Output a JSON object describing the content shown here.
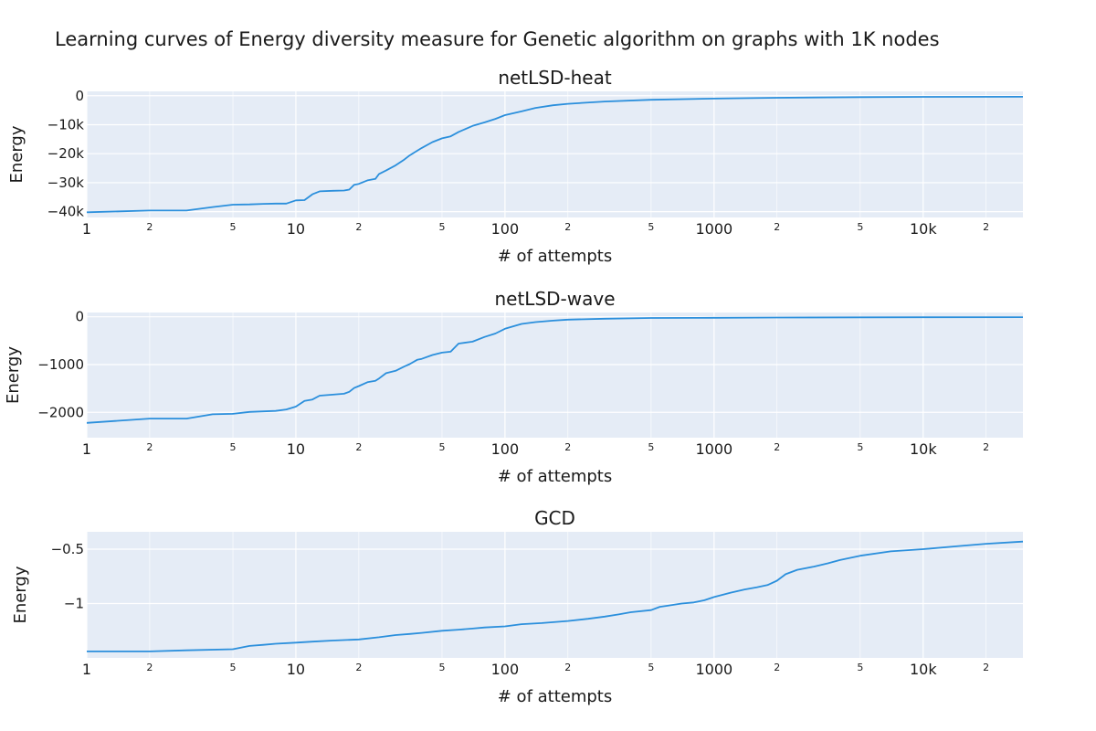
{
  "figure": {
    "title": "Learning curves of Energy diversity measure for Genetic algorithm on graphs with 1K nodes"
  },
  "colors": {
    "line": "#2b8fdc",
    "plot_bg": "#e5ecf6",
    "grid": "#ffffff"
  },
  "chart_data": [
    {
      "type": "line",
      "title": "netLSD-heat",
      "xlabel": "# of attempts",
      "ylabel": "Energy",
      "xscale": "log",
      "xlim": [
        1,
        30000
      ],
      "ylim": [
        -42000,
        1500
      ],
      "xticks_major": [
        {
          "value": 1,
          "label": "1"
        },
        {
          "value": 10,
          "label": "10"
        },
        {
          "value": 100,
          "label": "100"
        },
        {
          "value": 1000,
          "label": "1000"
        },
        {
          "value": 10000,
          "label": "10k"
        }
      ],
      "xticks_minor": [
        {
          "value": 2,
          "label": "2"
        },
        {
          "value": 5,
          "label": "5"
        },
        {
          "value": 20,
          "label": "2"
        },
        {
          "value": 50,
          "label": "5"
        },
        {
          "value": 200,
          "label": "2"
        },
        {
          "value": 500,
          "label": "5"
        },
        {
          "value": 2000,
          "label": "2"
        },
        {
          "value": 5000,
          "label": "5"
        },
        {
          "value": 20000,
          "label": "2"
        }
      ],
      "yticks": [
        {
          "value": 0,
          "label": "0"
        },
        {
          "value": -10000,
          "label": "−10k"
        },
        {
          "value": -20000,
          "label": "−20k"
        },
        {
          "value": -30000,
          "label": "−30k"
        },
        {
          "value": -40000,
          "label": "−40k"
        }
      ],
      "grid": true,
      "series": [
        {
          "x": [
            1,
            2,
            3,
            4,
            5,
            6,
            7,
            8,
            9,
            10,
            11,
            12,
            13,
            15,
            17,
            18,
            19,
            20,
            22,
            24,
            25,
            27,
            30,
            33,
            35,
            38,
            40,
            45,
            50,
            55,
            60,
            70,
            80,
            90,
            100,
            120,
            140,
            170,
            200,
            300,
            500,
            1000,
            2000,
            5000,
            10000,
            30000
          ],
          "y": [
            -40200,
            -39600,
            -39600,
            -38400,
            -37600,
            -37500,
            -37300,
            -37200,
            -37200,
            -36100,
            -36000,
            -34000,
            -33000,
            -32800,
            -32700,
            -32400,
            -30700,
            -30400,
            -29200,
            -28700,
            -27000,
            -25800,
            -24000,
            -22000,
            -20600,
            -19000,
            -18000,
            -16000,
            -14700,
            -14000,
            -12500,
            -10400,
            -9200,
            -8000,
            -6700,
            -5400,
            -4200,
            -3300,
            -2800,
            -2000,
            -1400,
            -1000,
            -700,
            -500,
            -400,
            -350
          ]
        }
      ]
    },
    {
      "type": "line",
      "title": "netLSD-wave",
      "xlabel": "# of attempts",
      "ylabel": "Energy",
      "xscale": "log",
      "xlim": [
        1,
        30000
      ],
      "ylim": [
        -2530,
        90
      ],
      "xticks_major": [
        {
          "value": 1,
          "label": "1"
        },
        {
          "value": 10,
          "label": "10"
        },
        {
          "value": 100,
          "label": "100"
        },
        {
          "value": 1000,
          "label": "1000"
        },
        {
          "value": 10000,
          "label": "10k"
        }
      ],
      "xticks_minor": [
        {
          "value": 2,
          "label": "2"
        },
        {
          "value": 5,
          "label": "5"
        },
        {
          "value": 20,
          "label": "2"
        },
        {
          "value": 50,
          "label": "5"
        },
        {
          "value": 200,
          "label": "2"
        },
        {
          "value": 500,
          "label": "5"
        },
        {
          "value": 2000,
          "label": "2"
        },
        {
          "value": 5000,
          "label": "5"
        },
        {
          "value": 20000,
          "label": "2"
        }
      ],
      "yticks": [
        {
          "value": 0,
          "label": "0"
        },
        {
          "value": -1000,
          "label": "−1000"
        },
        {
          "value": -2000,
          "label": "−2000"
        }
      ],
      "grid": true,
      "series": [
        {
          "x": [
            1,
            2,
            3,
            4,
            5,
            6,
            7,
            8,
            9,
            10,
            11,
            12,
            13,
            15,
            17,
            18,
            19,
            20,
            22,
            24,
            25,
            27,
            30,
            33,
            35,
            38,
            40,
            45,
            50,
            55,
            60,
            70,
            80,
            90,
            100,
            120,
            140,
            170,
            200,
            300,
            500,
            1000,
            2000,
            5000,
            10000,
            30000
          ],
          "y": [
            -2220,
            -2130,
            -2130,
            -2040,
            -2030,
            -1990,
            -1980,
            -1970,
            -1940,
            -1880,
            -1760,
            -1730,
            -1650,
            -1630,
            -1610,
            -1570,
            -1490,
            -1450,
            -1370,
            -1340,
            -1290,
            -1180,
            -1130,
            -1040,
            -990,
            -900,
            -880,
            -800,
            -750,
            -730,
            -560,
            -520,
            -420,
            -350,
            -250,
            -150,
            -110,
            -80,
            -60,
            -40,
            -25,
            -20,
            -15,
            -12,
            -10,
            -8
          ]
        }
      ]
    },
    {
      "type": "line",
      "title": "GCD",
      "xlabel": "# of attempts",
      "ylabel": "Energy",
      "xscale": "log",
      "xlim": [
        1,
        30000
      ],
      "ylim": [
        -1.5,
        -0.34
      ],
      "xticks_major": [
        {
          "value": 1,
          "label": "1"
        },
        {
          "value": 10,
          "label": "10"
        },
        {
          "value": 100,
          "label": "100"
        },
        {
          "value": 1000,
          "label": "1000"
        },
        {
          "value": 10000,
          "label": "10k"
        }
      ],
      "xticks_minor": [
        {
          "value": 2,
          "label": "2"
        },
        {
          "value": 5,
          "label": "5"
        },
        {
          "value": 20,
          "label": "2"
        },
        {
          "value": 50,
          "label": "5"
        },
        {
          "value": 200,
          "label": "2"
        },
        {
          "value": 500,
          "label": "5"
        },
        {
          "value": 2000,
          "label": "2"
        },
        {
          "value": 5000,
          "label": "5"
        },
        {
          "value": 20000,
          "label": "2"
        }
      ],
      "yticks": [
        {
          "value": -0.5,
          "label": "−0.5"
        },
        {
          "value": -1,
          "label": "−1"
        }
      ],
      "grid": true,
      "series": [
        {
          "x": [
            1,
            2,
            3,
            5,
            6,
            7,
            8,
            10,
            12,
            15,
            20,
            25,
            30,
            35,
            40,
            50,
            60,
            70,
            80,
            100,
            120,
            150,
            200,
            250,
            300,
            350,
            400,
            500,
            550,
            600,
            700,
            800,
            900,
            1000,
            1200,
            1400,
            1600,
            1800,
            2000,
            2200,
            2500,
            3000,
            3500,
            4000,
            5000,
            7000,
            10000,
            15000,
            20000,
            30000
          ],
          "y": [
            -1.44,
            -1.44,
            -1.43,
            -1.42,
            -1.39,
            -1.38,
            -1.37,
            -1.36,
            -1.35,
            -1.34,
            -1.33,
            -1.31,
            -1.29,
            -1.28,
            -1.27,
            -1.25,
            -1.24,
            -1.23,
            -1.22,
            -1.21,
            -1.19,
            -1.18,
            -1.16,
            -1.14,
            -1.12,
            -1.1,
            -1.08,
            -1.06,
            -1.03,
            -1.02,
            -1.0,
            -0.99,
            -0.97,
            -0.94,
            -0.9,
            -0.87,
            -0.85,
            -0.83,
            -0.79,
            -0.73,
            -0.69,
            -0.66,
            -0.63,
            -0.6,
            -0.56,
            -0.52,
            -0.5,
            -0.47,
            -0.45,
            -0.43
          ]
        }
      ]
    }
  ]
}
